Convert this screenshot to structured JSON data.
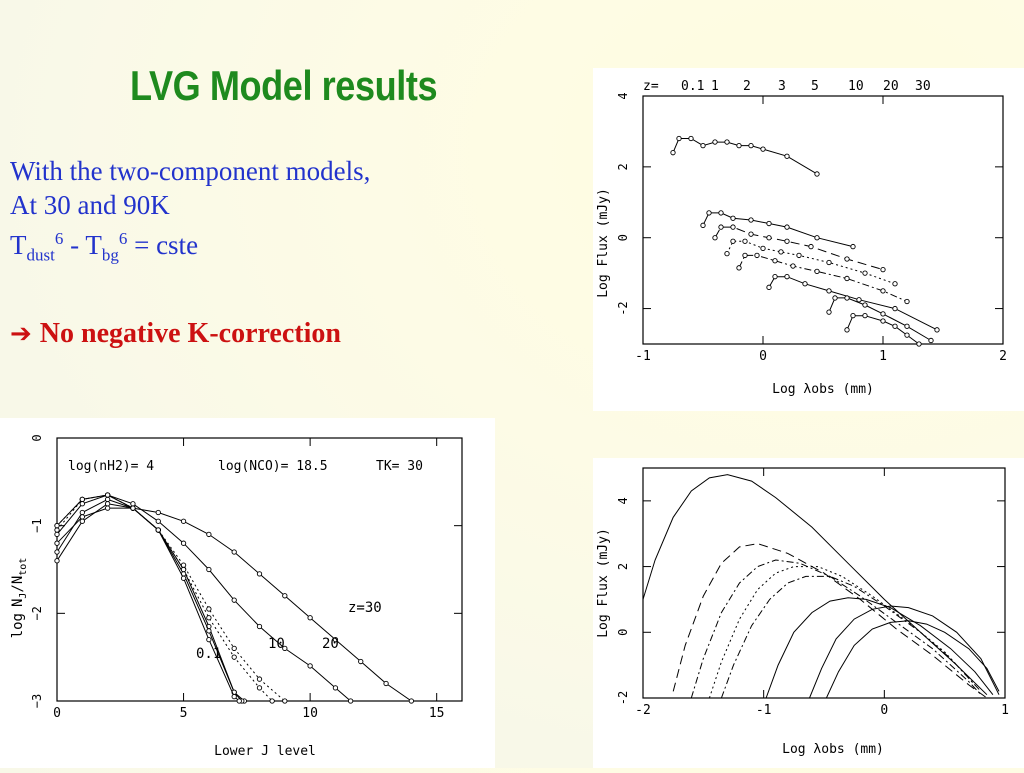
{
  "slide": {
    "title": "LVG Model results",
    "line1": "With the two-component models,",
    "line2": "At 30 and 90K",
    "formula": {
      "t1": "T",
      "sub1": "dust",
      "sup1": "6",
      "mid": " - T",
      "sub2": "bg",
      "sup2": "6",
      "end": " = cste"
    },
    "conclusion": "No negative K-correction",
    "arrow_icon": "right-arrow-icon"
  },
  "chart_data": [
    {
      "type": "line",
      "id": "sed-redshifted",
      "xlabel": "Log λobs (mm)",
      "ylabel": "Log Flux (mJy)",
      "xlim": [
        -1,
        2
      ],
      "ylim": [
        -3,
        4
      ],
      "xticks": [
        "-1",
        "0",
        "1",
        "2"
      ],
      "yticks": [
        "-2",
        "0",
        "2",
        "4"
      ],
      "legend_prefix": "z=",
      "legend_z": [
        "0.1",
        "1",
        "2",
        "3",
        "5",
        "10",
        "20",
        "30"
      ],
      "series": [
        {
          "x": [
            -0.75,
            -0.7,
            -0.6,
            -0.5,
            -0.4,
            -0.3,
            -0.2,
            -0.1,
            0.0,
            0.2,
            0.45
          ],
          "y": [
            2.4,
            2.8,
            2.8,
            2.6,
            2.7,
            2.7,
            2.6,
            2.6,
            2.5,
            2.3,
            1.8
          ],
          "style": "solid"
        },
        {
          "x": [
            -0.5,
            -0.45,
            -0.35,
            -0.25,
            -0.1,
            0.05,
            0.2,
            0.45,
            0.75
          ],
          "y": [
            0.35,
            0.7,
            0.7,
            0.55,
            0.5,
            0.4,
            0.3,
            0.0,
            -0.25
          ],
          "style": "solid"
        },
        {
          "x": [
            -0.4,
            -0.35,
            -0.25,
            -0.1,
            0.05,
            0.2,
            0.4,
            0.7,
            1.0
          ],
          "y": [
            0.0,
            0.3,
            0.3,
            0.1,
            0.0,
            -0.1,
            -0.25,
            -0.6,
            -0.9
          ],
          "style": "dashed"
        },
        {
          "x": [
            -0.3,
            -0.25,
            -0.15,
            0.0,
            0.15,
            0.3,
            0.55,
            0.85,
            1.1
          ],
          "y": [
            -0.45,
            -0.1,
            -0.1,
            -0.3,
            -0.4,
            -0.5,
            -0.7,
            -1.0,
            -1.3
          ],
          "style": "dotted"
        },
        {
          "x": [
            -0.2,
            -0.15,
            -0.05,
            0.1,
            0.25,
            0.45,
            0.7,
            1.0,
            1.2
          ],
          "y": [
            -0.85,
            -0.5,
            -0.5,
            -0.65,
            -0.8,
            -0.95,
            -1.15,
            -1.5,
            -1.8
          ],
          "style": "dashdot"
        },
        {
          "x": [
            0.05,
            0.1,
            0.2,
            0.35,
            0.55,
            0.8,
            1.1,
            1.45
          ],
          "y": [
            -1.4,
            -1.1,
            -1.1,
            -1.3,
            -1.5,
            -1.75,
            -2.0,
            -2.6
          ],
          "style": "solid"
        },
        {
          "x": [
            0.55,
            0.6,
            0.7,
            0.85,
            1.0,
            1.2,
            1.4
          ],
          "y": [
            -2.1,
            -1.7,
            -1.7,
            -1.9,
            -2.15,
            -2.5,
            -2.9
          ],
          "style": "solid"
        },
        {
          "x": [
            0.7,
            0.75,
            0.85,
            1.0,
            1.1,
            1.2,
            1.3
          ],
          "y": [
            -2.6,
            -2.2,
            -2.2,
            -2.35,
            -2.5,
            -2.75,
            -3.0
          ],
          "style": "solid"
        }
      ]
    },
    {
      "type": "line",
      "id": "sed-model",
      "xlabel": "Log λobs (mm)",
      "ylabel": "Log Flux (mJy)",
      "xlim": [
        -2,
        1
      ],
      "ylim": [
        -2,
        5
      ],
      "xticks": [
        "-2",
        "-1",
        "0",
        "1"
      ],
      "yticks": [
        "-2",
        "0",
        "2",
        "4"
      ],
      "series": [
        {
          "x": [
            -2.0,
            -1.9,
            -1.75,
            -1.6,
            -1.45,
            -1.3,
            -1.1,
            -0.9,
            -0.6,
            -0.3,
            0.0,
            0.3,
            0.6,
            0.85
          ],
          "y": [
            1.0,
            2.2,
            3.5,
            4.3,
            4.7,
            4.8,
            4.6,
            4.1,
            3.2,
            2.1,
            1.0,
            0.0,
            -1.0,
            -1.9
          ],
          "style": "solid"
        },
        {
          "x": [
            -1.75,
            -1.65,
            -1.5,
            -1.35,
            -1.2,
            -1.05,
            -0.8,
            -0.5,
            -0.2,
            0.1,
            0.4,
            0.7,
            0.85
          ],
          "y": [
            -1.8,
            -0.4,
            1.1,
            2.1,
            2.6,
            2.7,
            2.4,
            1.8,
            1.0,
            0.1,
            -0.7,
            -1.6,
            -2.0
          ],
          "style": "dashed"
        },
        {
          "x": [
            -1.6,
            -1.5,
            -1.35,
            -1.2,
            -1.05,
            -0.9,
            -0.7,
            -0.45,
            -0.2,
            0.1,
            0.4,
            0.7,
            0.8
          ],
          "y": [
            -2.0,
            -0.8,
            0.6,
            1.5,
            2.0,
            2.2,
            2.1,
            1.7,
            1.1,
            0.3,
            -0.5,
            -1.5,
            -1.9
          ],
          "style": "dashdot"
        },
        {
          "x": [
            -1.45,
            -1.35,
            -1.2,
            -1.05,
            -0.9,
            -0.75,
            -0.55,
            -0.35,
            -0.1,
            0.2,
            0.5,
            0.75
          ],
          "y": [
            -2.0,
            -0.9,
            0.4,
            1.3,
            1.8,
            2.0,
            2.0,
            1.7,
            1.1,
            0.3,
            -0.6,
            -1.6
          ],
          "style": "dotted"
        },
        {
          "x": [
            -1.35,
            -1.25,
            -1.1,
            -0.95,
            -0.8,
            -0.65,
            -0.45,
            -0.25,
            0.0,
            0.3,
            0.55,
            0.8
          ],
          "y": [
            -2.0,
            -1.0,
            0.2,
            1.0,
            1.5,
            1.7,
            1.7,
            1.4,
            0.8,
            0.0,
            -0.8,
            -1.8
          ],
          "style": "dashdot"
        },
        {
          "x": [
            -0.98,
            -0.88,
            -0.75,
            -0.6,
            -0.45,
            -0.3,
            -0.15,
            0.05,
            0.3,
            0.55,
            0.75,
            0.9
          ],
          "y": [
            -2.0,
            -1.0,
            0.0,
            0.6,
            0.95,
            1.05,
            1.0,
            0.75,
            0.2,
            -0.5,
            -1.2,
            -1.9
          ],
          "style": "solid"
        },
        {
          "x": [
            -0.62,
            -0.52,
            -0.4,
            -0.25,
            -0.1,
            0.05,
            0.2,
            0.4,
            0.6,
            0.8,
            0.95
          ],
          "y": [
            -2.0,
            -1.1,
            -0.2,
            0.4,
            0.7,
            0.8,
            0.75,
            0.5,
            0.0,
            -0.8,
            -1.9
          ],
          "style": "solid"
        },
        {
          "x": [
            -0.48,
            -0.38,
            -0.25,
            -0.1,
            0.05,
            0.2,
            0.35,
            0.5,
            0.7,
            0.85,
            0.95
          ],
          "y": [
            -2.0,
            -1.2,
            -0.4,
            0.1,
            0.3,
            0.35,
            0.25,
            0.0,
            -0.5,
            -1.1,
            -1.8
          ],
          "style": "solid"
        }
      ]
    },
    {
      "type": "line",
      "id": "co-population",
      "xlabel": "Lower J level",
      "ylabel": "log NJ/Ntot",
      "ylabel_parts": {
        "log": "log",
        "N": "N",
        "sub_j": "J",
        "slash": "/N",
        "sub_tot": "tot"
      },
      "xlim": [
        0,
        16
      ],
      "ylim": [
        -3,
        0
      ],
      "xticks": [
        "0",
        "5",
        "10",
        "15"
      ],
      "yticks": [
        "0",
        "−1",
        "−2",
        "−3"
      ],
      "header": {
        "nh2": "log(nH2)=  4",
        "nco": "log(NCO)=  18.5",
        "tk": "TK=  30"
      },
      "curve_labels": {
        "z30": "z=30",
        "z20": "20",
        "z10": "10",
        "z01": "0.1"
      },
      "series": [
        {
          "x": [
            0,
            1,
            2,
            3,
            4,
            5,
            6,
            7,
            7.4
          ],
          "y": [
            -1.4,
            -0.95,
            -0.75,
            -0.8,
            -1.05,
            -1.5,
            -2.15,
            -2.9,
            -3.0
          ],
          "style": "solid"
        },
        {
          "x": [
            0,
            1,
            2,
            3,
            4,
            5,
            6,
            7,
            7.3
          ],
          "y": [
            -1.3,
            -0.85,
            -0.7,
            -0.8,
            -1.05,
            -1.55,
            -2.2,
            -2.9,
            -3.0
          ],
          "style": "solid"
        },
        {
          "x": [
            0,
            1,
            2,
            3,
            4,
            5,
            6,
            7,
            7.2
          ],
          "y": [
            -1.1,
            -0.75,
            -0.65,
            -0.8,
            -1.05,
            -1.6,
            -2.3,
            -2.95,
            -3.0
          ],
          "style": "solid"
        },
        {
          "x": [
            0,
            1,
            2,
            3,
            4,
            5,
            6,
            7,
            8,
            8.5
          ],
          "y": [
            -1.05,
            -0.7,
            -0.65,
            -0.8,
            -1.05,
            -1.5,
            -2.05,
            -2.5,
            -2.85,
            -3.0
          ],
          "style": "dotted"
        },
        {
          "x": [
            0,
            1,
            2,
            3,
            4,
            5,
            6,
            7,
            8,
            9
          ],
          "y": [
            -1.0,
            -0.7,
            -0.65,
            -0.8,
            -1.05,
            -1.45,
            -1.95,
            -2.4,
            -2.75,
            -3.0
          ],
          "style": "dotted"
        },
        {
          "x": [
            0,
            1,
            2,
            3,
            4,
            5,
            6,
            7,
            8,
            9,
            10,
            11,
            11.6
          ],
          "y": [
            -1.0,
            -0.7,
            -0.65,
            -0.75,
            -0.95,
            -1.2,
            -1.5,
            -1.85,
            -2.15,
            -2.4,
            -2.6,
            -2.85,
            -3.0
          ],
          "style": "solid"
        },
        {
          "x": [
            0,
            1,
            2,
            3,
            4,
            5,
            6,
            7,
            8,
            9,
            10,
            11,
            12,
            13,
            14
          ],
          "y": [
            -1.2,
            -0.9,
            -0.8,
            -0.8,
            -0.85,
            -0.95,
            -1.1,
            -1.3,
            -1.55,
            -1.8,
            -2.05,
            -2.3,
            -2.55,
            -2.8,
            -3.0
          ],
          "style": "solid"
        }
      ]
    }
  ]
}
